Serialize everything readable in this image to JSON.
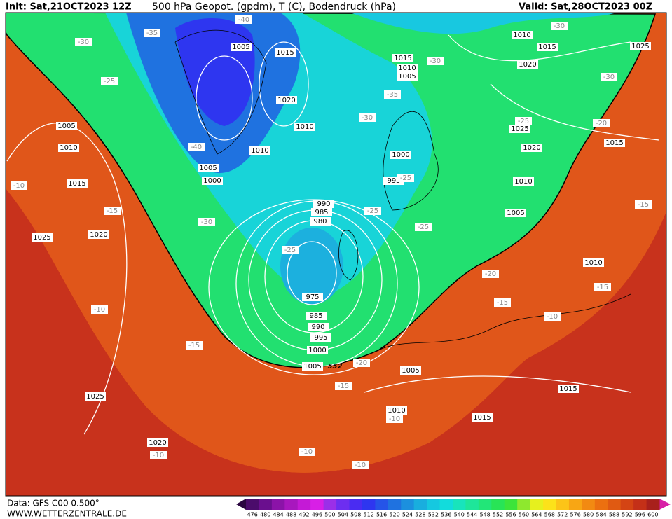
{
  "header": {
    "init": "Init: Sat,21OCT2023 12Z",
    "title": "500 hPa Geopot. (gpdm), T (C), Bodendruck (hPa)",
    "valid": "Valid: Sat,28OCT2023 00Z"
  },
  "footer": {
    "data": "Data: GFS C00 0.500°",
    "site": "WWW.WETTERZENTRALE.DE"
  },
  "map": {
    "contour_label": "552",
    "pressure_labels": [
      1005,
      1015,
      1020,
      1010,
      1010,
      1005,
      1000,
      1015,
      1010,
      1005,
      1010,
      1015,
      1025,
      1020,
      1025,
      1020,
      1015,
      1000,
      995,
      1010,
      1005,
      990,
      985,
      980,
      975,
      985,
      990,
      995,
      1000,
      1005,
      1005,
      1010,
      1015,
      1020,
      1025,
      1025,
      1020,
      1010,
      1015,
      1005,
      1010,
      1015
    ],
    "temperature_labels": [
      -40,
      -35,
      -30,
      -25,
      -40,
      -35,
      -30,
      -30,
      -30,
      -30,
      -25,
      -20,
      -25,
      -25,
      -25,
      -25,
      -30,
      -10,
      -15,
      -10,
      -15,
      -20,
      -15,
      -10,
      -15,
      -15,
      -20,
      -15,
      -10,
      -10,
      -10,
      -10
    ]
  },
  "colorbar": {
    "ticks": [
      476,
      480,
      484,
      488,
      492,
      496,
      500,
      504,
      508,
      512,
      516,
      520,
      524,
      528,
      532,
      536,
      540,
      544,
      548,
      552,
      556,
      560,
      564,
      568,
      572,
      576,
      580,
      584,
      588,
      592,
      596,
      600
    ],
    "colors": [
      "#4b0c6b",
      "#6a0f8e",
      "#8b13a8",
      "#a817be",
      "#c41ad6",
      "#d81fe6",
      "#9b2fe8",
      "#6d2ef0",
      "#4a2cf2",
      "#2e36f0",
      "#2554e8",
      "#1f72e0",
      "#1c90de",
      "#19aede",
      "#15c8e0",
      "#12dcdc",
      "#18e4bc",
      "#1ee69a",
      "#22e678",
      "#28e456",
      "#3ce43a",
      "#8ee82e",
      "#e6f01e",
      "#fce21a",
      "#fcc418",
      "#f8a614",
      "#f28a12",
      "#ec7010",
      "#e05a12",
      "#d44414",
      "#c43018",
      "#a8201c"
    ]
  }
}
